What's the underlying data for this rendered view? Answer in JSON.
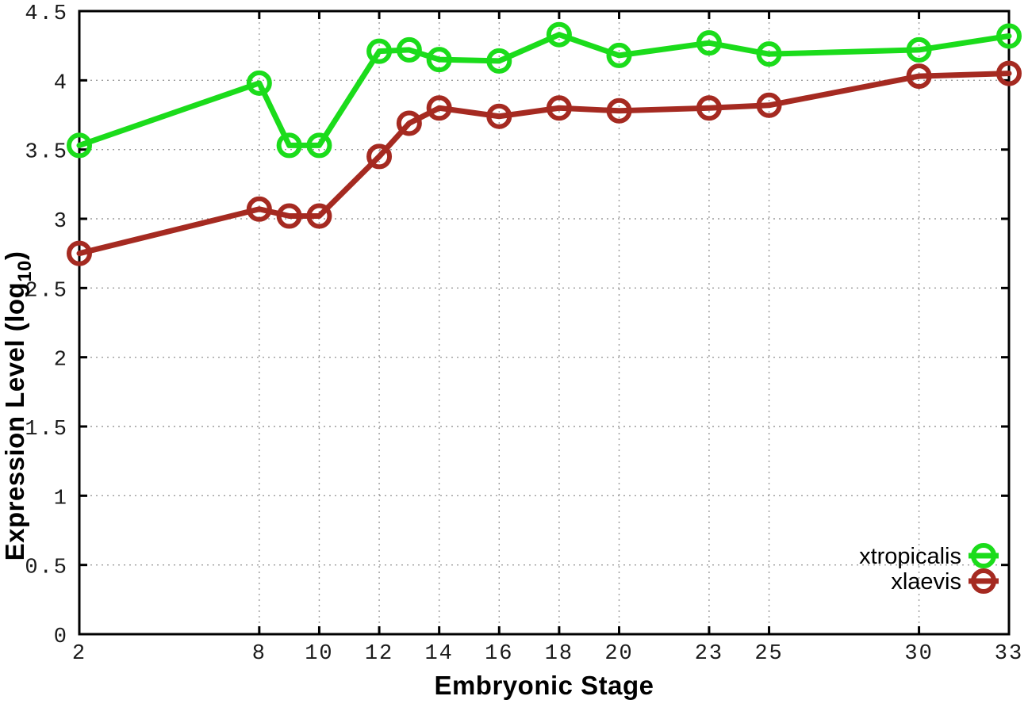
{
  "chart_data": {
    "type": "line",
    "title": "",
    "xlabel": "Embryonic Stage",
    "ylabel_main": "Expression Level (log",
    "ylabel_sub": "10",
    "ylabel_end": ")",
    "xlim": [
      2,
      33
    ],
    "ylim": [
      0,
      4.5
    ],
    "grid": true,
    "legend_position": "bottom-right",
    "x_ticks": [
      2,
      8,
      10,
      12,
      14,
      16,
      18,
      20,
      23,
      25,
      30,
      33
    ],
    "y_ticks": [
      0,
      0.5,
      1,
      1.5,
      2,
      2.5,
      3,
      3.5,
      4,
      4.5
    ],
    "x": [
      2,
      8,
      9,
      10,
      12,
      13,
      14,
      16,
      18,
      20,
      23,
      25,
      30,
      33
    ],
    "series": [
      {
        "name": "xtropicalis",
        "color": "#1bdc1b",
        "values": [
          3.53,
          3.98,
          3.53,
          3.53,
          4.21,
          4.22,
          4.15,
          4.14,
          4.33,
          4.18,
          4.27,
          4.19,
          4.22,
          4.32
        ]
      },
      {
        "name": "xlaevis",
        "color": "#a52a21",
        "values": [
          2.75,
          3.07,
          3.02,
          3.02,
          3.45,
          3.69,
          3.8,
          3.74,
          3.8,
          3.78,
          3.8,
          3.82,
          4.03,
          4.05
        ]
      }
    ],
    "style": {
      "axis_color": "#000000",
      "grid_color": "#9b9b9b",
      "background": "#ffffff"
    }
  }
}
